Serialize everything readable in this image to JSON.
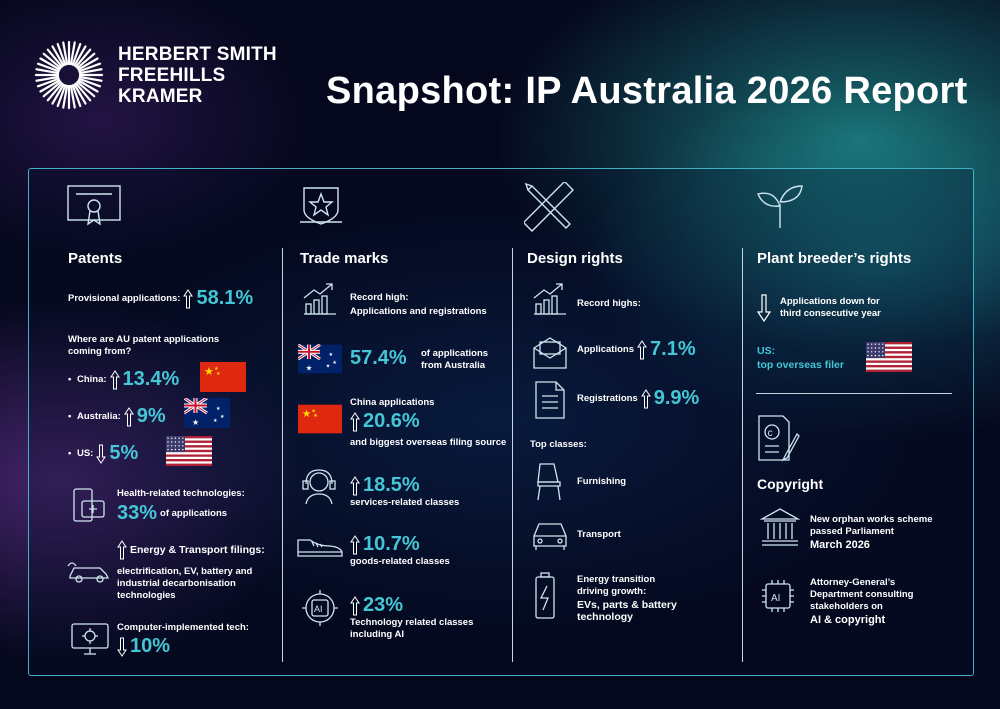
{
  "brand": {
    "line1": "HERBERT SMITH",
    "line2": "FREEHILLS",
    "line3": "KRAMER"
  },
  "title": "Snapshot: IP Australia 2026 Report",
  "patents": {
    "heading": "Patents",
    "provisional_label": "Provisional applications:",
    "provisional_value": "58.1%",
    "where_label": "Where are AU patent applications coming from?",
    "china_label": "China:",
    "china_value": "13.4%",
    "australia_label": "Australia:",
    "australia_value": "9%",
    "us_label": "US:",
    "us_value": "5%",
    "health_label": "Health-related technologies:",
    "health_value": "33%",
    "health_suffix": "of applications",
    "energy_label": "Energy & Transport filings:",
    "energy_desc": "electrification, EV, battery and industrial decarbonisation technologies",
    "computer_label": "Computer-implemented tech:",
    "computer_value": "10%"
  },
  "trademarks": {
    "heading": "Trade marks",
    "record_label": "Record high:",
    "record_desc": "Applications and registrations",
    "australia_value": "57.4%",
    "australia_desc": "of applications from Australia",
    "china_label": "China applications",
    "china_value": "20.6%",
    "china_desc": "and biggest overseas filing source",
    "services_value": "18.5%",
    "services_desc": "services-related classes",
    "goods_value": "10.7%",
    "goods_desc": "goods-related classes",
    "tech_value": "23%",
    "tech_desc": "Technology related classes including AI"
  },
  "design": {
    "heading": "Design rights",
    "record_label": "Record highs:",
    "applications_label": "Applications",
    "applications_value": "7.1%",
    "registrations_label": "Registrations",
    "registrations_value": "9.9%",
    "top_label": "Top classes:",
    "furnishing": "Furnishing",
    "transport": "Transport",
    "energy_label": "Energy transition driving growth:",
    "energy_desc": "EVs, parts & battery technology"
  },
  "plant": {
    "heading": "Plant breeder’s rights",
    "down_desc": "Applications down for third consecutive year",
    "us_label": "US:",
    "us_desc": "top overseas filer"
  },
  "copyright": {
    "heading": "Copyright",
    "orphan_desc": "New orphan works scheme passed Parliament",
    "orphan_date": "March 2026",
    "ag_desc": "Attorney-General’s Department consulting stakeholders on",
    "ag_bold": "AI & copyright",
    "ai_icon_text": "AI"
  },
  "icons": [
    "certificate-icon",
    "shield-star-icon",
    "ruler-pencil-icon",
    "sprout-icon",
    "growth-chart-icon",
    "envelope-icon",
    "document-icon",
    "chair-icon",
    "car-icon",
    "battery-icon",
    "headset-icon",
    "shoe-icon",
    "ai-chip-icon",
    "heart-phone-icon",
    "ev-car-icon",
    "gear-monitor-icon",
    "copyright-document-icon",
    "parliament-icon"
  ],
  "colors": {
    "accent": "#45c6d6",
    "background": "#05081d",
    "panel_border": "#3fb0c6"
  }
}
